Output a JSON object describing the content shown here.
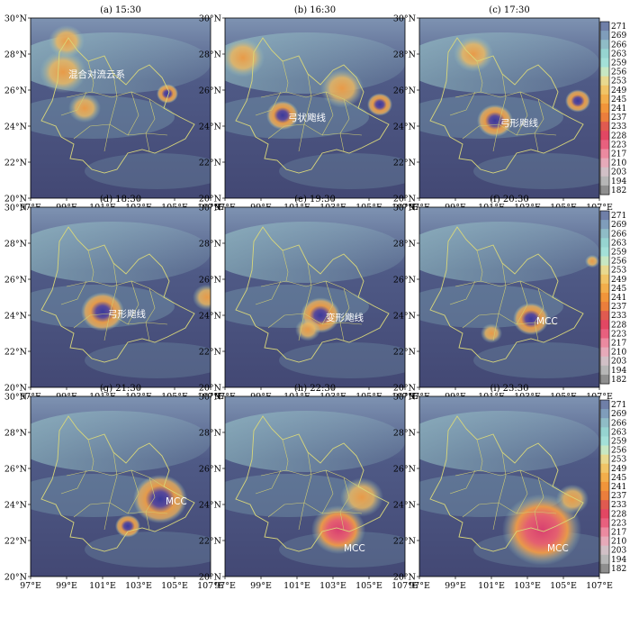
{
  "figure": {
    "x_ticks": [
      "97°E",
      "99°E",
      "101°E",
      "103°E",
      "105°E",
      "107°E"
    ],
    "y_ticks": [
      "30°N",
      "28°N",
      "26°N",
      "24°N",
      "22°N",
      "20°N"
    ],
    "colorbar_ticks": [
      "271",
      "269",
      "266",
      "263",
      "259",
      "256",
      "253",
      "249",
      "245",
      "241",
      "237",
      "233",
      "228",
      "223",
      "217",
      "210",
      "203",
      "194",
      "182"
    ],
    "colorbar_colors": [
      "#6f7fa8",
      "#7f9dbb",
      "#8fbcc6",
      "#96d4d0",
      "#a3e0d8",
      "#c7e7c3",
      "#e8d98f",
      "#f0c466",
      "#f2ae4b",
      "#f1953a",
      "#eb7e3c",
      "#e05a50",
      "#e24763",
      "#e8607e",
      "#eb8aa0",
      "#e6aab9",
      "#d1c0c6",
      "#b6b6b6",
      "#8e8e8e"
    ],
    "panels": [
      {
        "title": "(a) 15:30",
        "annotation": "混合对流云系",
        "cells": [
          {
            "lon": 98.8,
            "lat": 27.0,
            "r": 1.3,
            "level": "warm"
          },
          {
            "lon": 100.0,
            "lat": 25.0,
            "r": 0.9,
            "level": "warm"
          },
          {
            "lon": 104.6,
            "lat": 25.8,
            "r": 0.6,
            "level": "cold"
          },
          {
            "lon": 99.0,
            "lat": 28.7,
            "r": 1.0,
            "level": "warm"
          }
        ]
      },
      {
        "title": "(b) 16:30",
        "annotation": "弓状飑线",
        "cells": [
          {
            "lon": 100.2,
            "lat": 24.6,
            "r": 0.9,
            "level": "cold"
          },
          {
            "lon": 105.6,
            "lat": 25.2,
            "r": 0.7,
            "level": "cold"
          },
          {
            "lon": 103.5,
            "lat": 26.1,
            "r": 1.2,
            "level": "warm"
          },
          {
            "lon": 98.0,
            "lat": 27.8,
            "r": 1.2,
            "level": "warm"
          }
        ]
      },
      {
        "title": "(c) 17:30",
        "annotation": "弓形飑线",
        "cells": [
          {
            "lon": 101.2,
            "lat": 24.3,
            "r": 1.0,
            "level": "cold"
          },
          {
            "lon": 105.8,
            "lat": 25.4,
            "r": 0.7,
            "level": "cold"
          },
          {
            "lon": 100.0,
            "lat": 28.0,
            "r": 1.1,
            "level": "warm"
          }
        ]
      },
      {
        "title": "(d) 18:30",
        "annotation": "弓形飑线",
        "cells": [
          {
            "lon": 101.0,
            "lat": 24.2,
            "r": 1.2,
            "level": "cold"
          },
          {
            "lon": 106.8,
            "lat": 25.0,
            "r": 0.8,
            "level": "warm"
          }
        ]
      },
      {
        "title": "(e) 19:30",
        "annotation": "变形飑线",
        "cells": [
          {
            "lon": 102.3,
            "lat": 24.0,
            "r": 1.1,
            "level": "cold"
          },
          {
            "lon": 101.6,
            "lat": 23.2,
            "r": 0.7,
            "level": "warm"
          }
        ]
      },
      {
        "title": "(f) 20:30",
        "annotation": "MCC",
        "cells": [
          {
            "lon": 103.2,
            "lat": 23.8,
            "r": 1.0,
            "level": "cold"
          },
          {
            "lon": 101.0,
            "lat": 23.0,
            "r": 0.6,
            "level": "warm"
          },
          {
            "lon": 106.6,
            "lat": 27.0,
            "r": 0.4,
            "level": "warm"
          }
        ]
      },
      {
        "title": "(g) 21:30",
        "annotation": "MCC",
        "cells": [
          {
            "lon": 104.2,
            "lat": 24.3,
            "r": 1.5,
            "level": "cold"
          },
          {
            "lon": 102.4,
            "lat": 22.8,
            "r": 0.7,
            "level": "cold"
          }
        ]
      },
      {
        "title": "(h) 22:30",
        "annotation": "MCC",
        "cells": [
          {
            "lon": 103.3,
            "lat": 22.6,
            "r": 1.5,
            "level": "red"
          },
          {
            "lon": 104.6,
            "lat": 24.4,
            "r": 1.2,
            "level": "warm"
          }
        ]
      },
      {
        "title": "(i) 23:30",
        "annotation": "MCC",
        "cells": [
          {
            "lon": 103.8,
            "lat": 22.6,
            "r": 2.2,
            "level": "red"
          },
          {
            "lon": 105.5,
            "lat": 24.3,
            "r": 0.9,
            "level": "warm"
          }
        ]
      }
    ]
  }
}
